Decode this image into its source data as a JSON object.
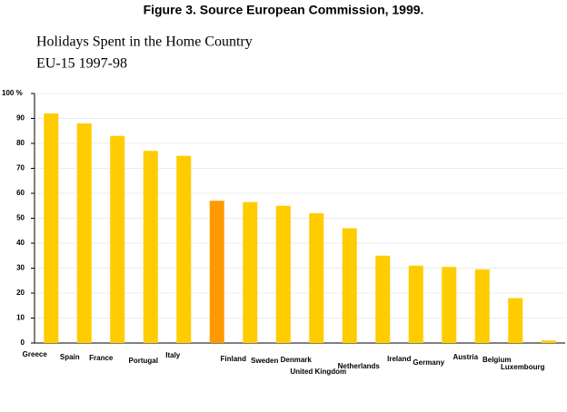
{
  "chart_data": {
    "type": "bar",
    "title": "Figure 3. Source European Commission, 1999.",
    "subtitle": [
      "Holidays Spent in the Home Country",
      "EU-15 1997-98"
    ],
    "categories": [
      "Greece",
      "Spain",
      "France",
      "Portugal",
      "Italy",
      "Finland",
      "Sweden",
      "Denmark",
      "United Kingdom",
      "Netherlands",
      "Ireland",
      "Germany",
      "Austria",
      "Belgium",
      "Luxembourg",
      null
    ],
    "values": [
      92,
      88,
      83,
      77,
      75,
      57,
      56.5,
      55,
      52,
      46,
      35,
      31,
      30.5,
      29.5,
      18,
      1
    ],
    "colors": [
      "#ffcc00",
      "#ffcc00",
      "#ffcc00",
      "#ffcc00",
      "#ffcc00",
      "#ff9900",
      "#ffcc00",
      "#ffcc00",
      "#ffcc00",
      "#ffcc00",
      "#ffcc00",
      "#ffcc00",
      "#ffcc00",
      "#ffcc00",
      "#ffcc00",
      "#ffcc00"
    ],
    "ylim": [
      0,
      100
    ],
    "yticks": [
      0,
      10,
      20,
      30,
      40,
      50,
      60,
      70,
      80,
      90,
      {
        "value": 100,
        "label": "100 %"
      }
    ],
    "grid": true
  }
}
